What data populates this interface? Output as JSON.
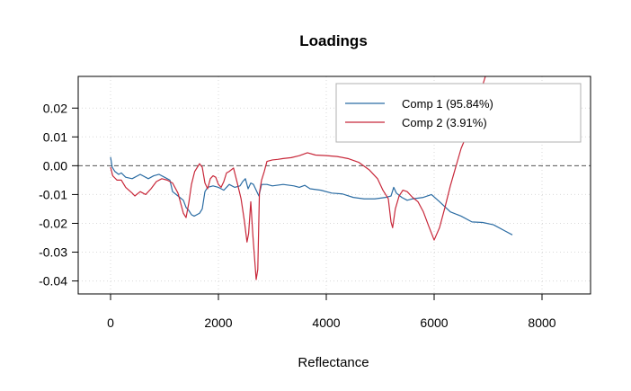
{
  "chart_data": {
    "type": "line",
    "title": "Loadings",
    "xlabel": "Reflectance",
    "ylabel": "",
    "xlim": [
      -600,
      8900
    ],
    "ylim": [
      -0.0445,
      0.031
    ],
    "xticks": [
      0,
      2000,
      4000,
      6000,
      8000
    ],
    "xtick_labels": [
      "0",
      "2000",
      "4000",
      "6000",
      "8000"
    ],
    "yticks": [
      -0.04,
      -0.03,
      -0.02,
      -0.01,
      0.0,
      0.01,
      0.02
    ],
    "ytick_labels": [
      "-0.04",
      "-0.03",
      "-0.02",
      "-0.01",
      "0.00",
      "0.01",
      "0.02"
    ],
    "grid": true,
    "reference_line": {
      "y": 0,
      "style": "dashed"
    },
    "legend_position": "top-right",
    "series": [
      {
        "name": "Comp 1 (95.84%)",
        "color": "#2b6ca3",
        "points": [
          [
            0,
            0.003
          ],
          [
            30,
            -0.0005
          ],
          [
            80,
            -0.002
          ],
          [
            150,
            -0.003
          ],
          [
            200,
            -0.0025
          ],
          [
            280,
            -0.004
          ],
          [
            400,
            -0.0045
          ],
          [
            550,
            -0.003
          ],
          [
            700,
            -0.0045
          ],
          [
            800,
            -0.0035
          ],
          [
            900,
            -0.003
          ],
          [
            1000,
            -0.004
          ],
          [
            1100,
            -0.005
          ],
          [
            1150,
            -0.009
          ],
          [
            1250,
            -0.0105
          ],
          [
            1350,
            -0.012
          ],
          [
            1400,
            -0.0145
          ],
          [
            1450,
            -0.0155
          ],
          [
            1500,
            -0.017
          ],
          [
            1550,
            -0.0175
          ],
          [
            1650,
            -0.0165
          ],
          [
            1700,
            -0.015
          ],
          [
            1750,
            -0.009
          ],
          [
            1800,
            -0.0075
          ],
          [
            1900,
            -0.007
          ],
          [
            2000,
            -0.0075
          ],
          [
            2100,
            -0.0085
          ],
          [
            2200,
            -0.0065
          ],
          [
            2300,
            -0.0075
          ],
          [
            2400,
            -0.007
          ],
          [
            2450,
            -0.0055
          ],
          [
            2500,
            -0.0045
          ],
          [
            2550,
            -0.008
          ],
          [
            2600,
            -0.006
          ],
          [
            2650,
            -0.0065
          ],
          [
            2700,
            -0.0085
          ],
          [
            2750,
            -0.0105
          ],
          [
            2800,
            -0.0065
          ],
          [
            2900,
            -0.0065
          ],
          [
            3000,
            -0.007
          ],
          [
            3200,
            -0.0065
          ],
          [
            3400,
            -0.007
          ],
          [
            3500,
            -0.0075
          ],
          [
            3600,
            -0.0068
          ],
          [
            3700,
            -0.008
          ],
          [
            3900,
            -0.0085
          ],
          [
            4100,
            -0.0095
          ],
          [
            4300,
            -0.0098
          ],
          [
            4500,
            -0.011
          ],
          [
            4700,
            -0.0115
          ],
          [
            4900,
            -0.0115
          ],
          [
            5100,
            -0.011
          ],
          [
            5200,
            -0.0105
          ],
          [
            5250,
            -0.0075
          ],
          [
            5300,
            -0.0095
          ],
          [
            5400,
            -0.011
          ],
          [
            5500,
            -0.012
          ],
          [
            5600,
            -0.0115
          ],
          [
            5800,
            -0.011
          ],
          [
            5950,
            -0.01
          ],
          [
            6100,
            -0.0125
          ],
          [
            6300,
            -0.016
          ],
          [
            6500,
            -0.0175
          ],
          [
            6700,
            -0.0195
          ],
          [
            6900,
            -0.0197
          ],
          [
            7100,
            -0.0205
          ],
          [
            7300,
            -0.0225
          ],
          [
            7450,
            -0.024
          ]
        ]
      },
      {
        "name": "Comp 2 (3.91%)",
        "color": "#c8283a",
        "points": [
          [
            0,
            -0.0005
          ],
          [
            40,
            -0.0035
          ],
          [
            120,
            -0.005
          ],
          [
            200,
            -0.005
          ],
          [
            280,
            -0.0075
          ],
          [
            400,
            -0.0095
          ],
          [
            450,
            -0.0105
          ],
          [
            550,
            -0.009
          ],
          [
            650,
            -0.01
          ],
          [
            750,
            -0.008
          ],
          [
            850,
            -0.0055
          ],
          [
            950,
            -0.0045
          ],
          [
            1050,
            -0.005
          ],
          [
            1150,
            -0.006
          ],
          [
            1250,
            -0.0095
          ],
          [
            1350,
            -0.0165
          ],
          [
            1400,
            -0.018
          ],
          [
            1450,
            -0.013
          ],
          [
            1500,
            -0.0065
          ],
          [
            1560,
            -0.002
          ],
          [
            1650,
            0.0007
          ],
          [
            1700,
            -0.0005
          ],
          [
            1750,
            -0.006
          ],
          [
            1800,
            -0.008
          ],
          [
            1850,
            -0.0045
          ],
          [
            1900,
            -0.0035
          ],
          [
            1950,
            -0.004
          ],
          [
            2000,
            -0.0065
          ],
          [
            2050,
            -0.0075
          ],
          [
            2100,
            -0.0055
          ],
          [
            2150,
            -0.0025
          ],
          [
            2200,
            -0.002
          ],
          [
            2280,
            -0.0008
          ],
          [
            2350,
            -0.006
          ],
          [
            2420,
            -0.0115
          ],
          [
            2480,
            -0.019
          ],
          [
            2530,
            -0.0265
          ],
          [
            2560,
            -0.0235
          ],
          [
            2600,
            -0.0125
          ],
          [
            2640,
            -0.0245
          ],
          [
            2700,
            -0.0395
          ],
          [
            2730,
            -0.036
          ],
          [
            2760,
            -0.0095
          ],
          [
            2800,
            -0.005
          ],
          [
            2850,
            -0.002
          ],
          [
            2900,
            0.0015
          ],
          [
            3000,
            0.002
          ],
          [
            3100,
            0.0022
          ],
          [
            3200,
            0.0025
          ],
          [
            3350,
            0.0028
          ],
          [
            3500,
            0.0035
          ],
          [
            3650,
            0.0045
          ],
          [
            3800,
            0.0037
          ],
          [
            4000,
            0.0035
          ],
          [
            4200,
            0.0032
          ],
          [
            4400,
            0.0025
          ],
          [
            4600,
            0.0012
          ],
          [
            4800,
            -0.0015
          ],
          [
            4950,
            -0.0045
          ],
          [
            5050,
            -0.0085
          ],
          [
            5150,
            -0.0115
          ],
          [
            5200,
            -0.0195
          ],
          [
            5230,
            -0.0215
          ],
          [
            5280,
            -0.015
          ],
          [
            5350,
            -0.0105
          ],
          [
            5420,
            -0.0085
          ],
          [
            5500,
            -0.009
          ],
          [
            5600,
            -0.011
          ],
          [
            5700,
            -0.0125
          ],
          [
            5800,
            -0.016
          ],
          [
            5900,
            -0.021
          ],
          [
            6000,
            -0.0258
          ],
          [
            6100,
            -0.0215
          ],
          [
            6200,
            -0.0145
          ],
          [
            6300,
            -0.007
          ],
          [
            6400,
            -0.0005
          ],
          [
            6500,
            0.006
          ],
          [
            6600,
            0.0105
          ],
          [
            6700,
            0.016
          ],
          [
            6800,
            0.022
          ],
          [
            6900,
            0.028
          ],
          [
            6950,
            0.031
          ]
        ]
      }
    ]
  }
}
